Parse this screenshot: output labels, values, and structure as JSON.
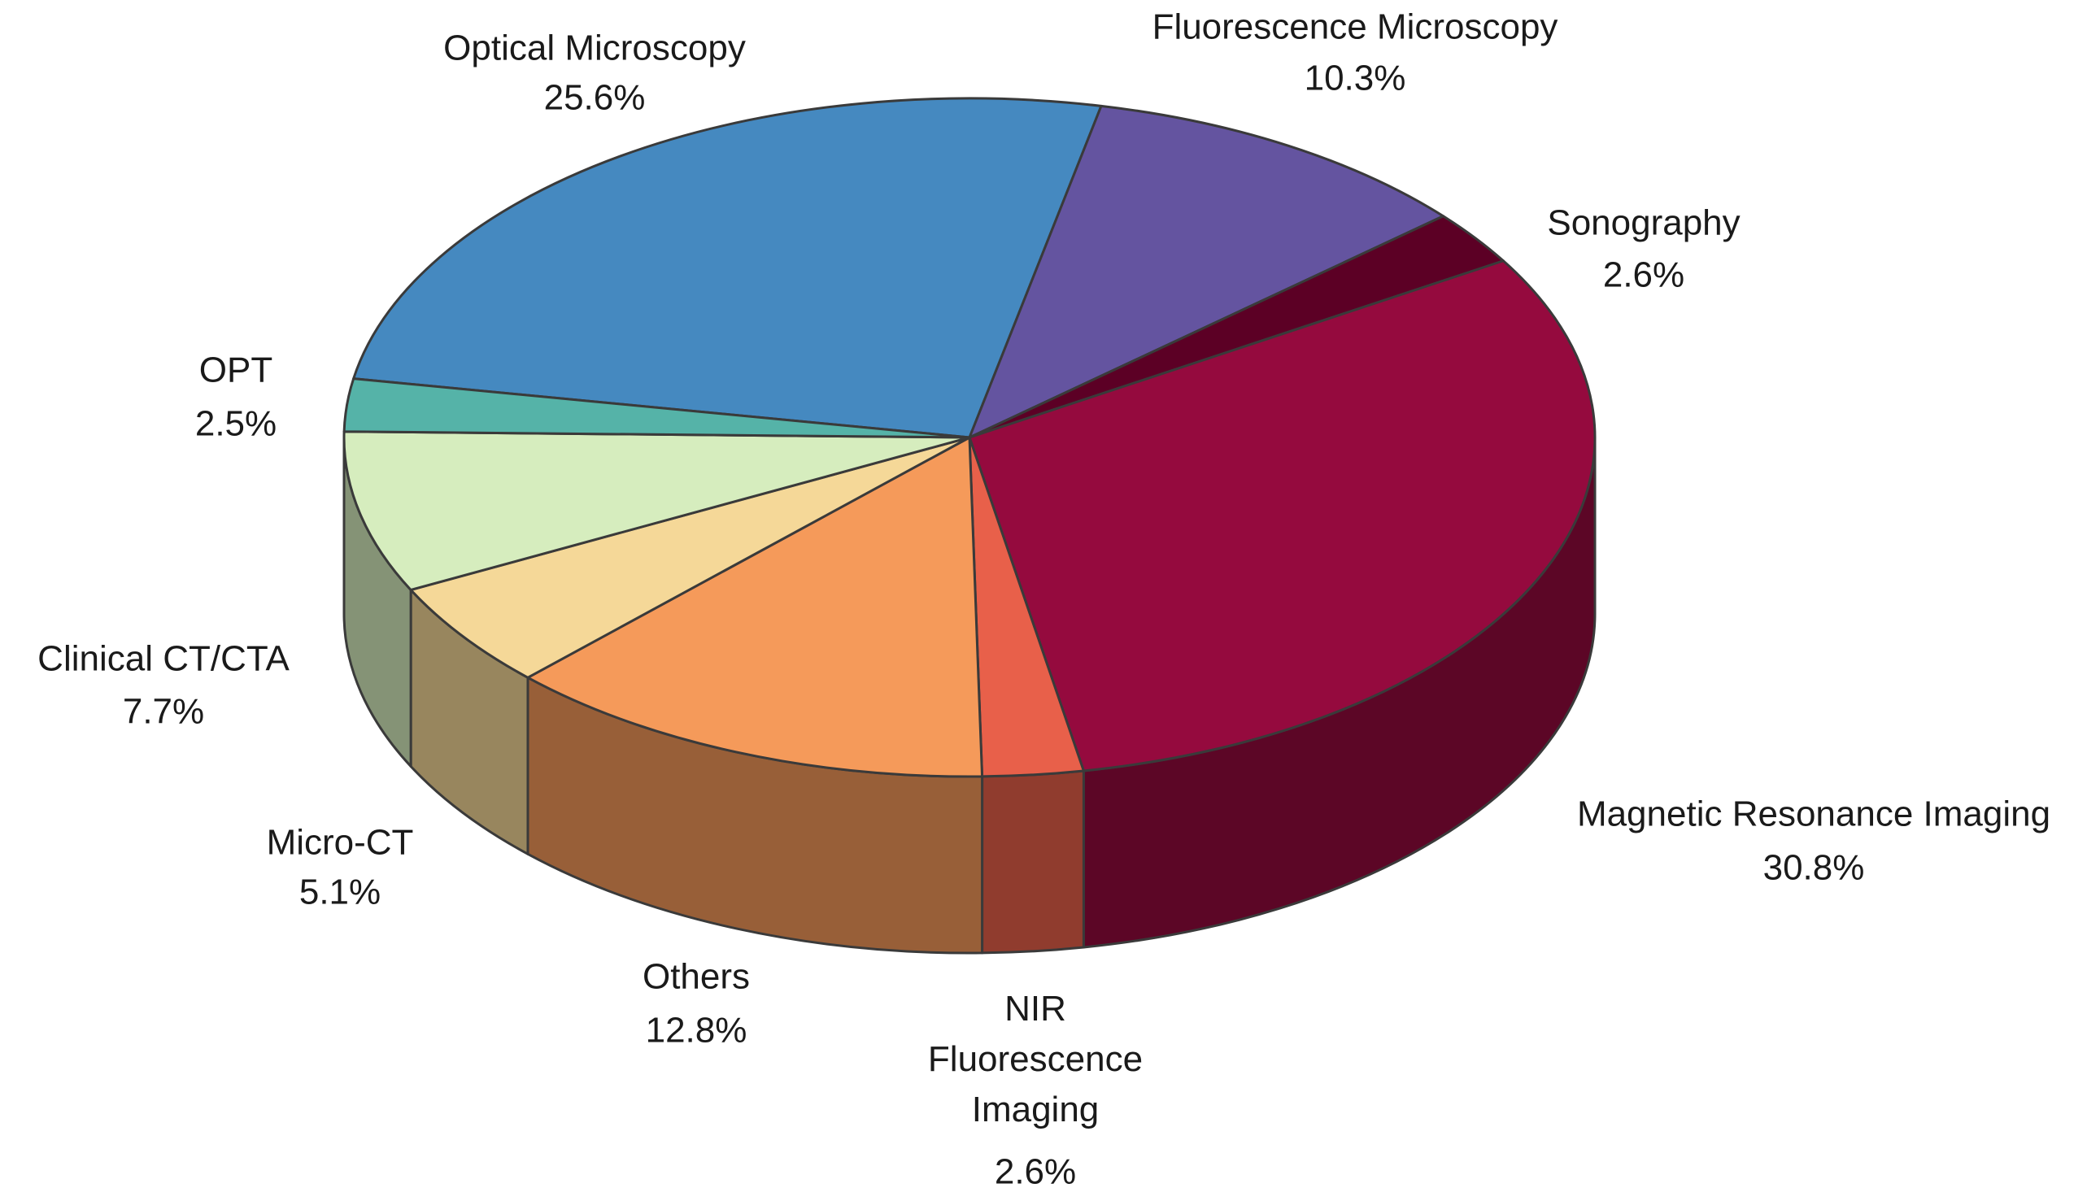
{
  "chart_data": {
    "type": "pie",
    "categories": [
      "Optical Microscopy",
      "Fluorescence Microscopy",
      "Sonography",
      "Magnetic Resonance Imaging",
      "NIR Fluorescence Imaging",
      "Others",
      "Micro-CT",
      "Clinical CT/CTA",
      "OPT"
    ],
    "values": [
      25.6,
      10.3,
      2.6,
      30.8,
      2.6,
      12.8,
      5.1,
      7.7,
      2.5
    ],
    "value_labels": [
      "25.6%",
      "10.3%",
      "2.6%",
      "30.8%",
      "2.6%",
      "12.8%",
      "5.1%",
      "7.7%",
      "2.5%"
    ],
    "colors": [
      "#4589c0",
      "#6454a0",
      "#5c0025",
      "#950a3e",
      "#e8604a",
      "#f59a5a",
      "#f5d898",
      "#d6edbe",
      "#55b3a8"
    ]
  }
}
